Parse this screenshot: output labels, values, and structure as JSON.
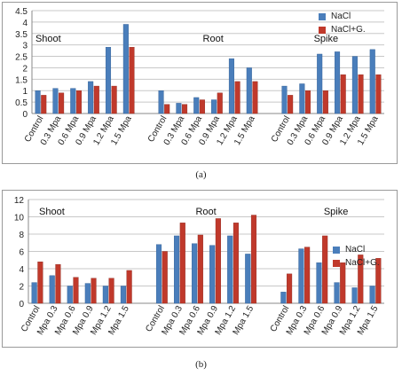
{
  "chart_data": [
    {
      "type": "bar",
      "panel": "(a)",
      "ylim": [
        0,
        4.5
      ],
      "yticks": [
        "0",
        "0.5",
        "1",
        "1.5",
        "2",
        "2.5",
        "3",
        "3.5",
        "4",
        "4.5"
      ],
      "grid": true,
      "legend_position": "top-right",
      "legend": [
        "NaCl",
        "NaCl+G."
      ],
      "colors": {
        "nacl": "#4a7ebb",
        "naclg": "#c0392b"
      },
      "groups": [
        {
          "title": "Shoot",
          "categories": [
            "Control",
            "0.3 Mpa",
            "0.6 Mpa",
            "0.9 Mpa",
            "1.2 Mpa",
            "1.5 Mpa"
          ],
          "nacl": [
            1.0,
            1.1,
            1.1,
            1.4,
            2.9,
            3.9
          ],
          "naclg": [
            0.8,
            0.9,
            1.0,
            1.2,
            1.2,
            2.9
          ]
        },
        {
          "title": "Root",
          "categories": [
            "Control",
            "0.3 Mpa",
            "0.6 Mpa",
            "0.9 Mpa",
            "1.2 Mpa",
            "1.5 Mpa"
          ],
          "nacl": [
            1.0,
            0.45,
            0.7,
            0.6,
            2.4,
            2.0
          ],
          "naclg": [
            0.4,
            0.4,
            0.6,
            0.9,
            1.4,
            1.4
          ]
        },
        {
          "title": "Spike",
          "categories": [
            "Control",
            "0.3 Mpa",
            "0.6 Mpa",
            "0.9 Mpa",
            "1.2 Mpa",
            "1.5 Mpa"
          ],
          "nacl": [
            1.2,
            1.3,
            2.6,
            2.7,
            2.5,
            2.8
          ],
          "naclg": [
            0.8,
            1.0,
            1.0,
            1.7,
            1.7,
            1.7
          ]
        }
      ]
    },
    {
      "type": "bar",
      "panel": "(b)",
      "ylim": [
        0,
        12
      ],
      "yticks": [
        "0",
        "2",
        "4",
        "6",
        "8",
        "10",
        "12"
      ],
      "grid": true,
      "legend_position": "right",
      "legend": [
        "NaCl",
        "NaCl+G."
      ],
      "colors": {
        "nacl": "#4a7ebb",
        "naclg": "#c0392b"
      },
      "groups": [
        {
          "title": "Shoot",
          "categories": [
            "Control",
            "Mpa 0.3",
            "Mpa 0.6",
            "Mpa 0.9",
            "Mpa 1.2",
            "Mpa 1.5"
          ],
          "nacl": [
            2.4,
            3.2,
            2.0,
            2.3,
            2.0,
            2.0
          ],
          "naclg": [
            4.8,
            4.5,
            3.0,
            2.9,
            2.9,
            3.8
          ]
        },
        {
          "title": "Root",
          "categories": [
            "Control",
            "Mpa 0.3",
            "Mpa 0.6",
            "Mpa 0.9",
            "Mpa 1.2",
            "Mpa 1.5"
          ],
          "nacl": [
            6.8,
            7.8,
            6.9,
            6.7,
            7.8,
            5.7
          ],
          "naclg": [
            6.0,
            9.3,
            7.9,
            9.8,
            9.3,
            10.2
          ]
        },
        {
          "title": "Spike",
          "categories": [
            "Control",
            "Mpa 0.3",
            "Mpa 0.6",
            "Mpa 0.9",
            "Mpa 1.2",
            "Mpa 1.5"
          ],
          "nacl": [
            1.3,
            6.3,
            4.7,
            2.4,
            1.8,
            2.0
          ],
          "naclg": [
            3.4,
            6.5,
            7.8,
            4.7,
            5.6,
            5.2
          ]
        }
      ]
    }
  ]
}
